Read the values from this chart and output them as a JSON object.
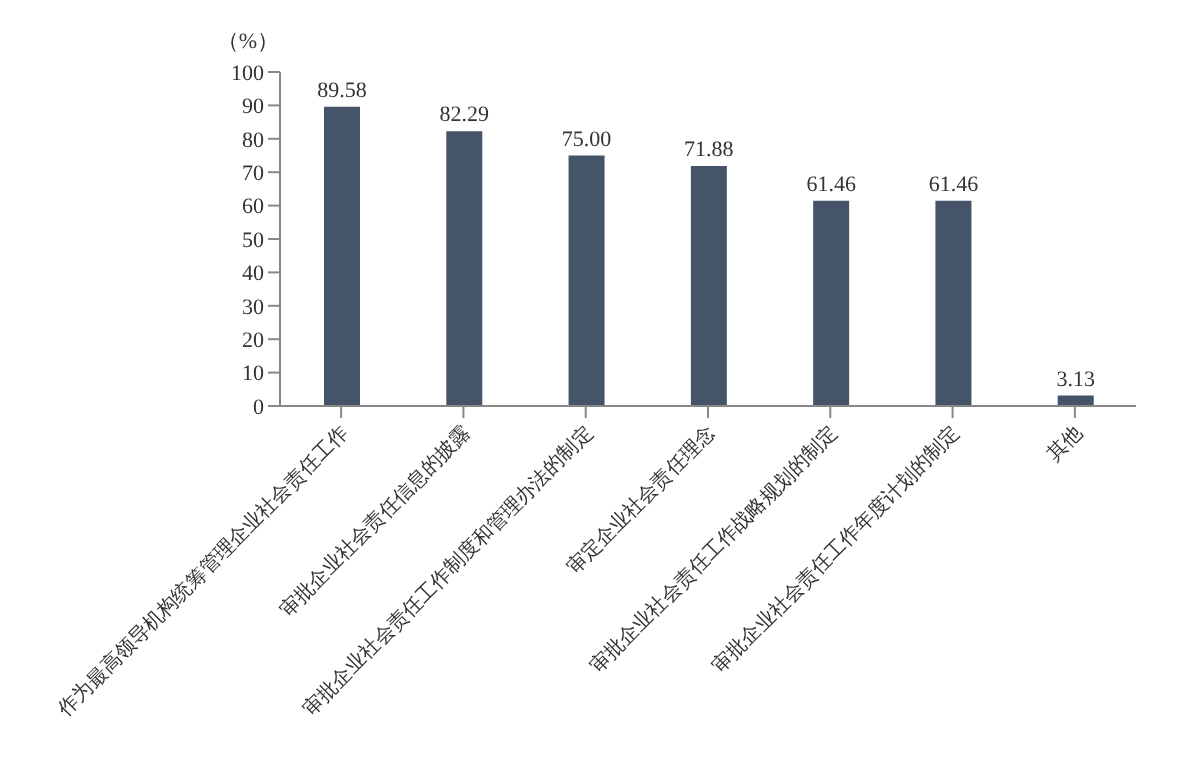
{
  "chart_data": {
    "type": "bar",
    "ylabel": "（%）",
    "categories": [
      "作为最高领导机构统筹管理企业社会责任工作",
      "审批企业社会责任信息的披露",
      "审批企业社会责任工作制度和管理办法的制定",
      "审定企业社会责任理念",
      "审批企业社会责任工作战略规划的制定",
      "审批企业社会责任工作年度计划的制定",
      "其他"
    ],
    "values": [
      89.58,
      82.29,
      75.0,
      71.88,
      61.46,
      61.46,
      3.13
    ],
    "value_labels": [
      "89.58",
      "82.29",
      "75.00",
      "71.88",
      "61.46",
      "61.46",
      "3.13"
    ],
    "color": "#46546a",
    "ylim": [
      0,
      100
    ],
    "yticks": [
      0,
      10,
      20,
      30,
      40,
      50,
      60,
      70,
      80,
      90,
      100
    ],
    "grid": false
  }
}
